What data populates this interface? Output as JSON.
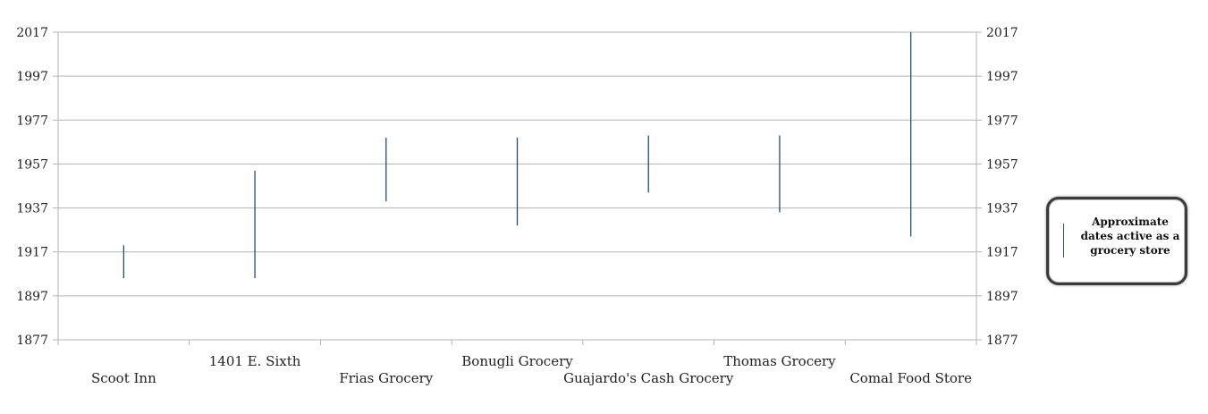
{
  "chart_data": {
    "type": "range-bar",
    "title": "",
    "xlabel": "",
    "ylabel": "",
    "ylim": [
      1877,
      2017
    ],
    "y_ticks": [
      "2017",
      "1997",
      "1977",
      "1957",
      "1937",
      "1917",
      "1897",
      "1877"
    ],
    "y_tick_values": [
      2017,
      1997,
      1977,
      1957,
      1937,
      1917,
      1897,
      1877
    ],
    "grid": true,
    "legend_position": "right",
    "categories": [
      "Scoot Inn",
      "1401 E. Sixth",
      "Frias Grocery",
      "Bonugli Grocery",
      "Guajardo's Cash Grocery",
      "Thomas Grocery",
      "Comal Food Store"
    ],
    "series": [
      {
        "name": "Approximate dates active as a grocery store",
        "color": "#1f4e79",
        "start": [
          1905,
          1905,
          1940,
          1929,
          1944,
          1935,
          1924
        ],
        "end": [
          1920,
          1954,
          1969,
          1969,
          1970,
          1970,
          2017
        ]
      }
    ]
  }
}
